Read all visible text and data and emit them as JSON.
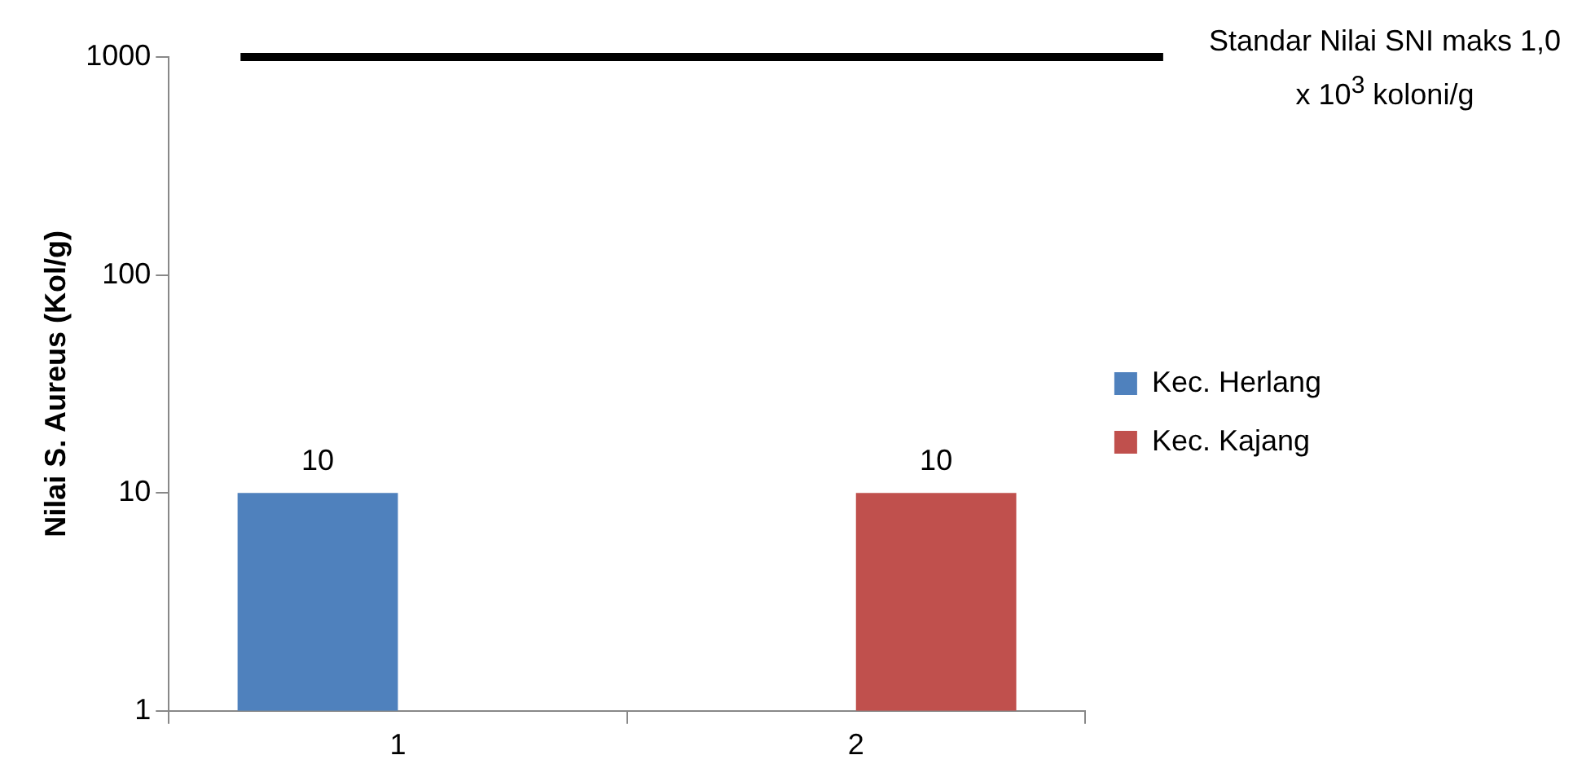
{
  "chart_data": {
    "type": "bar",
    "ylabel": "Nilai S. Aureus (Kol/g)",
    "categories": [
      "1",
      "2"
    ],
    "series": [
      {
        "name": "Kec. Herlang",
        "color": "#4f81bd",
        "values": [
          10,
          null
        ]
      },
      {
        "name": "Kec. Kajang",
        "color": "#c0504d",
        "values": [
          null,
          10
        ]
      }
    ],
    "log": true,
    "ylim": [
      1,
      1000
    ],
    "yticks": [
      1,
      10,
      100,
      1000
    ],
    "grid": false,
    "legend": "right",
    "data_labels": true,
    "ref_lines": [
      {
        "axis": "y",
        "value": 1000,
        "label": "Standar Nilai SNI maks 1,0 x 10$^{3}$ koloni/g",
        "color": "#000000"
      }
    ]
  }
}
